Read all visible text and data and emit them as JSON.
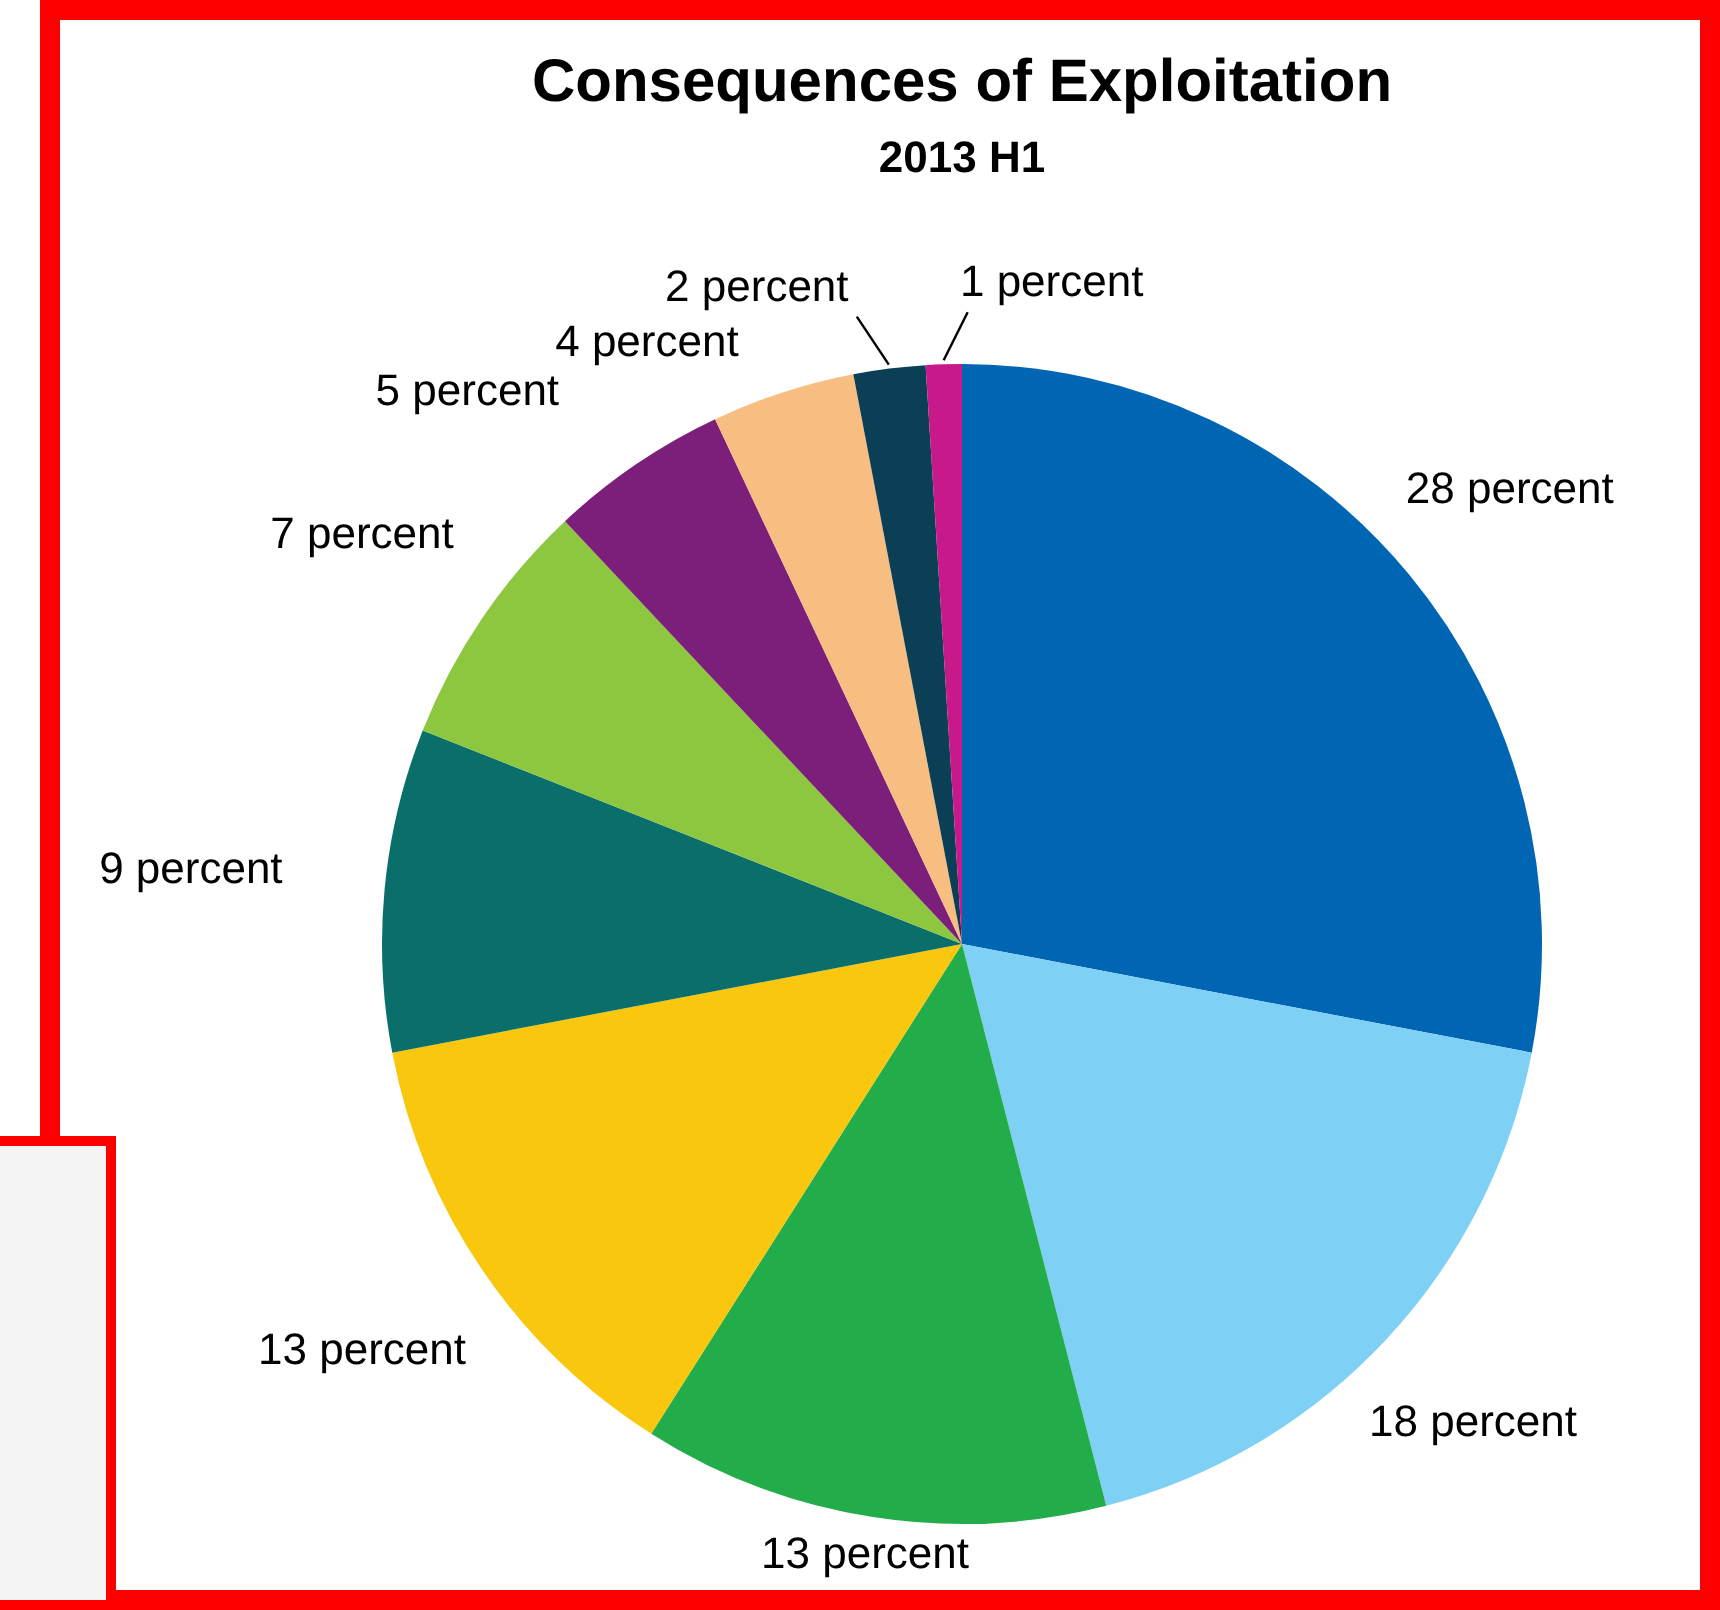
{
  "chart_data": {
    "type": "pie",
    "title": "Consequences of Exploitation",
    "subtitle": "2013 H1",
    "categories": [
      null,
      null,
      null,
      null,
      null,
      null,
      null,
      null,
      null,
      null
    ],
    "values": [
      28,
      18,
      13,
      13,
      9,
      7,
      5,
      4,
      2,
      1
    ],
    "colors": [
      "#0066b3",
      "#7fd0f5",
      "#22ad4a",
      "#f9c80e",
      "#0a6e6a",
      "#8dc63f",
      "#7b1f7a",
      "#f8bd80",
      "#0a3f55",
      "#c8198a"
    ],
    "value_labels": [
      "28 percent",
      "18 percent",
      "13 percent",
      "13 percent",
      "9 percent",
      "7 percent",
      "5 percent",
      "4 percent",
      "2 percent",
      "1 percent"
    ],
    "legend": false
  }
}
